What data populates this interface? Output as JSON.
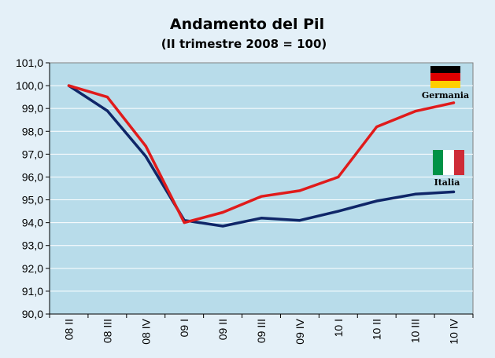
{
  "chart_data": {
    "type": "line",
    "title": "Andamento del Pil",
    "subtitle": "(II trimestre 2008 = 100)",
    "xlabel": "",
    "ylabel": "",
    "categories": [
      "08 II",
      "08 III",
      "08 IV",
      "09 I",
      "09 II",
      "09 III",
      "09 IV",
      "10 I",
      "10 II",
      "10 III",
      "10 IV"
    ],
    "ylim": [
      90,
      101
    ],
    "yticks": [
      "90,0",
      "91,0",
      "92,0",
      "93,0",
      "94,0",
      "95,0",
      "96,0",
      "97,0",
      "98,0",
      "99,0",
      "100,0",
      "101,0"
    ],
    "grid": true,
    "series": [
      {
        "name": "Germania",
        "color": "#e01b1b",
        "values": [
          100.0,
          99.5,
          97.35,
          94.0,
          94.45,
          95.15,
          95.4,
          96.0,
          98.2,
          98.88,
          99.25
        ]
      },
      {
        "name": "Italia",
        "color": "#0f2668",
        "values": [
          100.0,
          98.9,
          96.9,
          94.1,
          93.85,
          94.2,
          94.1,
          94.5,
          94.95,
          95.25,
          95.35
        ]
      }
    ],
    "flags": [
      {
        "label": "Germania",
        "icon": "flag-germany-icon",
        "colors": [
          "#000000",
          "#dd0000",
          "#ffce00"
        ]
      },
      {
        "label": "Italia",
        "icon": "flag-italy-icon",
        "colors": [
          "#009246",
          "#ffffff",
          "#ce2b37"
        ]
      }
    ],
    "colors": {
      "plot_background": "#b8dcea",
      "page_background": "#e4f0f8",
      "grid": "#ffffff"
    }
  }
}
